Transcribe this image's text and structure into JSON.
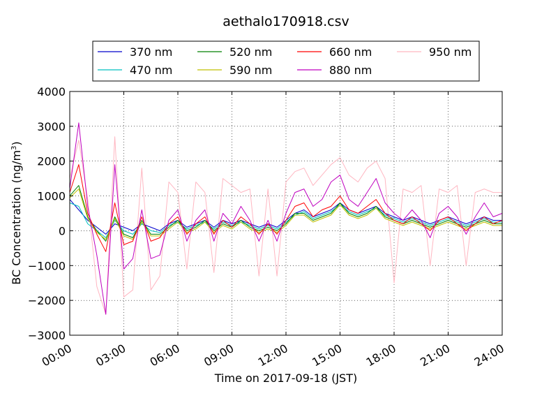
{
  "chart_data": {
    "type": "line",
    "title": "aethalo170918.csv",
    "xlabel": "Time on 2017-09-18 (JST)",
    "ylabel": "BC Concentration (ng/m",
    "ylabel_sup": "3",
    "ylabel_close": ")",
    "xlim": [
      "00:00",
      "24:00"
    ],
    "ylim": [
      -3000,
      4000
    ],
    "grid": true,
    "legend_position": "top-center",
    "x_ticks": [
      "00:00",
      "03:00",
      "06:00",
      "09:00",
      "12:00",
      "15:00",
      "18:00",
      "21:00",
      "24:00"
    ],
    "y_ticks": [
      -3000,
      -2000,
      -1000,
      0,
      1000,
      2000,
      3000,
      4000
    ],
    "y_tick_labels": [
      "−3000",
      "−2000",
      "−1000",
      "0",
      "1000",
      "2000",
      "3000",
      "4000"
    ],
    "x_hours": [
      0.0,
      0.5,
      1.0,
      1.5,
      2.0,
      2.5,
      3.0,
      3.5,
      4.0,
      4.5,
      5.0,
      5.5,
      6.0,
      6.5,
      7.0,
      7.5,
      8.0,
      8.5,
      9.0,
      9.5,
      10.0,
      10.5,
      11.0,
      11.5,
      12.0,
      12.5,
      13.0,
      13.5,
      14.0,
      14.5,
      15.0,
      15.5,
      16.0,
      16.5,
      17.0,
      17.5,
      18.0,
      18.5,
      19.0,
      19.5,
      20.0,
      20.5,
      21.0,
      21.5,
      22.0,
      22.5,
      23.0,
      23.5,
      24.0
    ],
    "series": [
      {
        "name": "370 nm",
        "color": "#0000cc",
        "values": [
          900,
          600,
          300,
          100,
          -100,
          200,
          100,
          0,
          200,
          100,
          0,
          200,
          300,
          100,
          200,
          300,
          100,
          300,
          200,
          300,
          200,
          100,
          200,
          100,
          300,
          500,
          600,
          400,
          500,
          600,
          800,
          600,
          500,
          600,
          700,
          500,
          400,
          300,
          400,
          300,
          200,
          300,
          400,
          300,
          200,
          300,
          400,
          300,
          300
        ]
      },
      {
        "name": "470 nm",
        "color": "#00bfbf",
        "values": [
          800,
          700,
          200,
          0,
          -200,
          300,
          0,
          -100,
          200,
          0,
          -50,
          150,
          250,
          50,
          150,
          250,
          50,
          250,
          150,
          250,
          150,
          50,
          150,
          50,
          250,
          450,
          550,
          350,
          450,
          550,
          750,
          550,
          450,
          550,
          650,
          450,
          350,
          250,
          350,
          250,
          150,
          250,
          350,
          250,
          150,
          250,
          350,
          250,
          250
        ]
      },
      {
        "name": "520 nm",
        "color": "#008000",
        "values": [
          1000,
          1300,
          400,
          0,
          -300,
          400,
          -100,
          -200,
          300,
          -100,
          -100,
          100,
          300,
          0,
          100,
          300,
          0,
          200,
          100,
          300,
          100,
          0,
          100,
          0,
          200,
          500,
          500,
          300,
          400,
          500,
          800,
          500,
          400,
          500,
          700,
          400,
          300,
          200,
          300,
          200,
          100,
          200,
          300,
          200,
          100,
          200,
          300,
          200,
          200
        ]
      },
      {
        "name": "590 nm",
        "color": "#bfbf00",
        "values": [
          950,
          1200,
          350,
          -50,
          -250,
          350,
          -150,
          -250,
          250,
          -150,
          -150,
          50,
          250,
          -50,
          50,
          250,
          -50,
          150,
          50,
          250,
          50,
          -50,
          50,
          -50,
          150,
          450,
          450,
          250,
          350,
          450,
          750,
          450,
          350,
          450,
          650,
          350,
          250,
          150,
          250,
          150,
          50,
          150,
          250,
          150,
          50,
          150,
          250,
          150,
          150
        ]
      },
      {
        "name": "660 nm",
        "color": "#ff0000",
        "values": [
          1100,
          1900,
          500,
          -100,
          -600,
          800,
          -400,
          -300,
          400,
          -300,
          -200,
          200,
          400,
          -100,
          200,
          400,
          -100,
          300,
          100,
          400,
          200,
          -100,
          200,
          -100,
          300,
          700,
          800,
          400,
          600,
          700,
          1000,
          600,
          500,
          700,
          900,
          500,
          300,
          200,
          400,
          200,
          0,
          300,
          400,
          200,
          0,
          200,
          400,
          200,
          300
        ]
      },
      {
        "name": "880 nm",
        "color": "#bf00bf",
        "values": [
          1200,
          3100,
          700,
          -700,
          -2400,
          1900,
          -1100,
          -800,
          600,
          -800,
          -700,
          300,
          600,
          -300,
          300,
          600,
          -300,
          500,
          200,
          700,
          300,
          -300,
          300,
          -300,
          500,
          1100,
          1200,
          700,
          900,
          1400,
          1600,
          900,
          700,
          1100,
          1500,
          800,
          500,
          300,
          600,
          300,
          -200,
          500,
          700,
          400,
          -100,
          400,
          800,
          400,
          500
        ]
      },
      {
        "name": "950 nm",
        "color": "#ffb6c1",
        "values": [
          1500,
          2600,
          900,
          -1600,
          -2400,
          2700,
          -1900,
          -1700,
          1800,
          -1700,
          -1300,
          1400,
          1100,
          -1100,
          1400,
          1100,
          -1200,
          1500,
          1300,
          1100,
          1200,
          -1300,
          1200,
          -1300,
          1400,
          1700,
          1800,
          1300,
          1600,
          1900,
          2100,
          1600,
          1400,
          1800,
          2000,
          1500,
          -1500,
          1200,
          1100,
          1300,
          -1000,
          1200,
          1100,
          1300,
          -1000,
          1100,
          1200,
          1100,
          1100
        ]
      }
    ]
  }
}
